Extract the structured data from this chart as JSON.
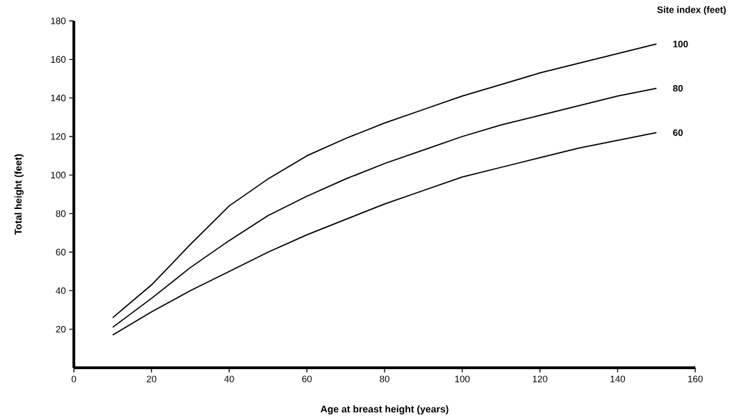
{
  "chart_data": {
    "type": "line",
    "xlabel": "Age at breast height (years)",
    "ylabel": "Total height (feet)",
    "legend_title": "Site index (feet)",
    "x": [
      10,
      20,
      30,
      40,
      50,
      60,
      70,
      80,
      90,
      100,
      110,
      120,
      130,
      140,
      150
    ],
    "series": [
      {
        "name": "100",
        "color": "#000000",
        "values": [
          26,
          43,
          64,
          84,
          98,
          110,
          119,
          127,
          134,
          141,
          147,
          153,
          158,
          163,
          168
        ]
      },
      {
        "name": "80",
        "color": "#000000",
        "values": [
          21,
          36,
          52,
          66,
          79,
          89,
          98,
          106,
          113,
          120,
          126,
          131,
          136,
          141,
          145
        ]
      },
      {
        "name": "60",
        "color": "#000000",
        "values": [
          17,
          29,
          40,
          50,
          60,
          69,
          77,
          85,
          92,
          99,
          104,
          109,
          114,
          118,
          122
        ]
      }
    ],
    "xlim": [
      0,
      160
    ],
    "xticks": [
      0,
      20,
      40,
      60,
      80,
      100,
      120,
      140,
      160
    ],
    "ylim": [
      0,
      180
    ],
    "yticks": [
      20,
      40,
      60,
      80,
      100,
      120,
      140,
      160,
      180
    ],
    "grid": false,
    "legend": false,
    "marker": "none",
    "line_style": "solid"
  }
}
